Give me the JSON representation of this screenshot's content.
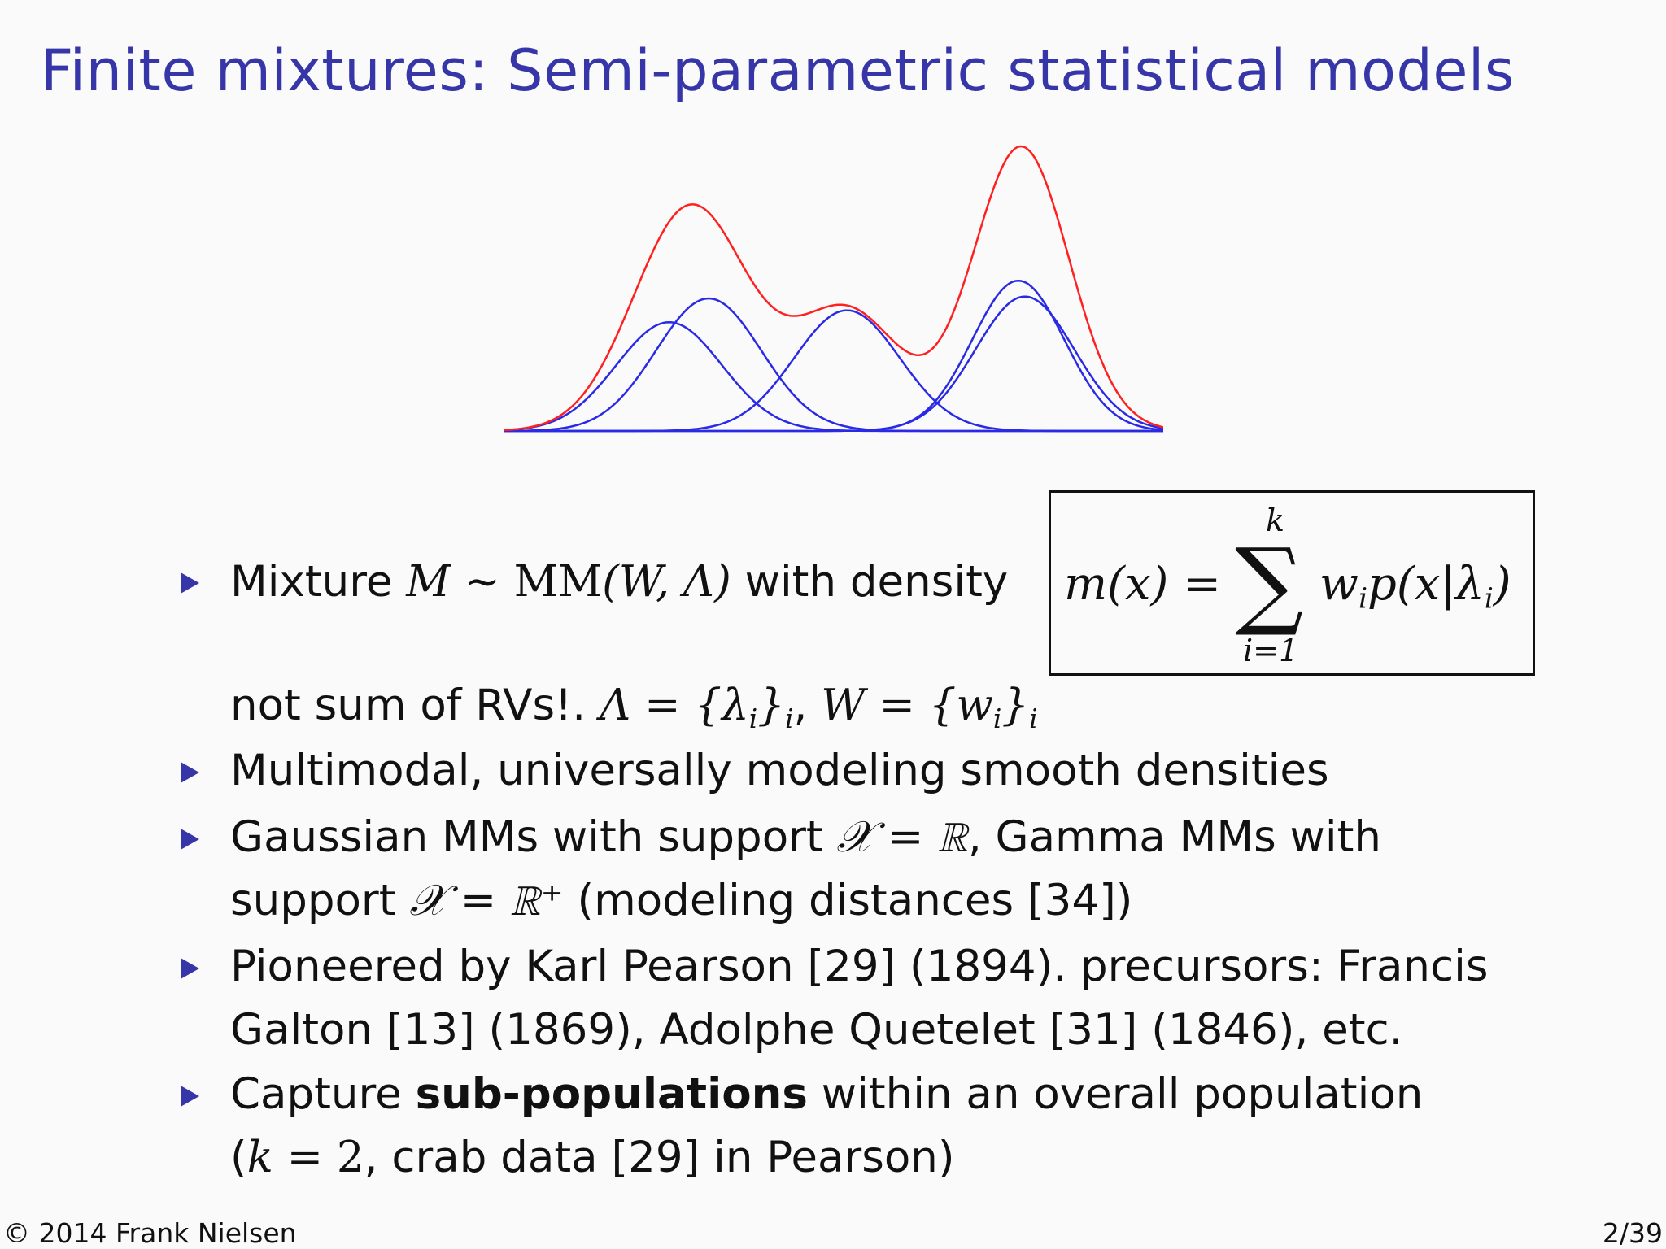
{
  "slide": {
    "title": "Finite mixtures: Semi-parametric statistical models",
    "bullets": {
      "b1": {
        "prefix": "Mixture ",
        "math_M": "M",
        "sim": " ∼ ",
        "mm": "MM",
        "args": "(W, Λ)",
        "suffix": " with density",
        "cont_text": "not sum of RVs!. ",
        "cont_lambda": "Λ = {λ",
        "cont_lambda_sub": "i",
        "cont_lambda_close": "}",
        "cont_lambda_close_sub": "i",
        "cont_comma": ", ",
        "cont_w": "W = {w",
        "cont_w_sub": "i",
        "cont_w_close": "}",
        "cont_w_close_sub": "i"
      },
      "b2": "Multimodal, universally modeling smooth densities",
      "b3": {
        "l1_a": "Gaussian MMs with support ",
        "l1_math": "𝒳 = ℝ",
        "l1_b": ", Gamma MMs with",
        "l2_a": "support ",
        "l2_math": "𝒳 = ℝ⁺",
        "l2_b": " (modeling distances [34])"
      },
      "b4": {
        "l1": "Pioneered by Karl Pearson [29] (1894). precursors: Francis",
        "l2": "Galton [13] (1869), Adolphe Quetelet [31] (1846), etc."
      },
      "b5": {
        "l1_a": "Capture ",
        "l1_bold": "sub-populations",
        "l1_b": " within an overall population",
        "l2_open": "(",
        "l2_k": "k",
        "l2_eq": " = 2",
        "l2_rest": ", crab data [29] in Pearson)"
      }
    },
    "formula": {
      "lhs": "m(x) = ",
      "sum": "∑",
      "upper": "k",
      "lower": "i=1",
      "term_w": "w",
      "term_w_sub": "i",
      "term_p": "p(x|λ",
      "term_p_sub": "i",
      "term_close": ")"
    },
    "footer": {
      "copyright_symbol": "©",
      "copyright_text": "2014 Frank Nielsen",
      "page": "2/39"
    },
    "figure": {
      "mixture_color": "#ff2020",
      "component_color": "#2a2ae6",
      "components": [
        {
          "mean": 0.25,
          "sd": 0.08,
          "peak": 0.55
        },
        {
          "mean": 0.31,
          "sd": 0.08,
          "peak": 0.67
        },
        {
          "mean": 0.52,
          "sd": 0.08,
          "peak": 0.61
        },
        {
          "mean": 0.78,
          "sd": 0.07,
          "peak": 0.76
        },
        {
          "mean": 0.79,
          "sd": 0.075,
          "peak": 0.68
        }
      ]
    }
  }
}
